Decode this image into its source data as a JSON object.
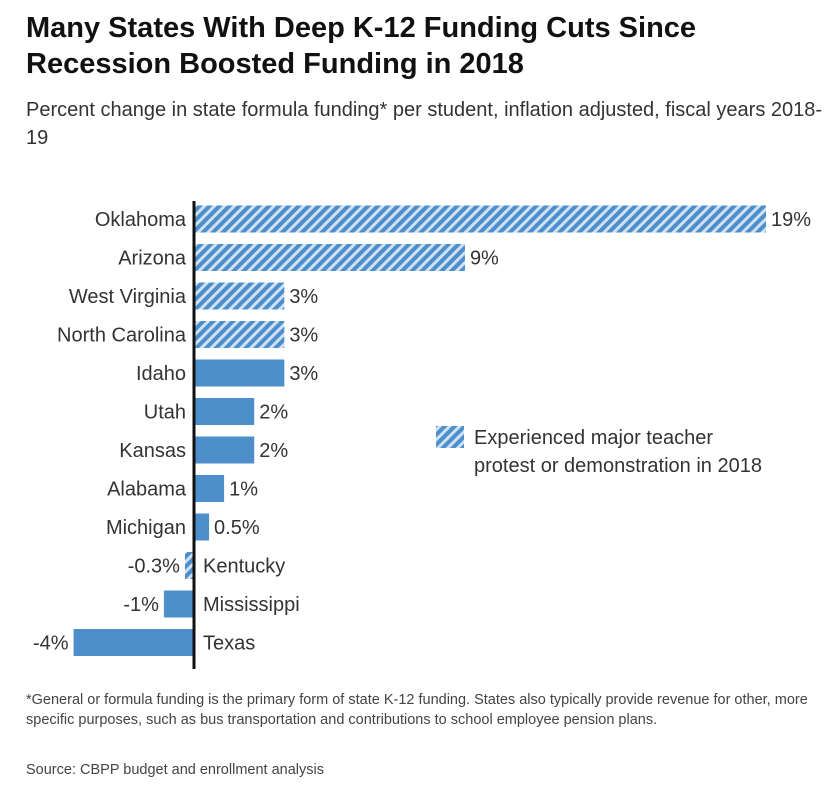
{
  "title": "Many States With Deep K-12 Funding Cuts Since Recession Boosted Funding in 2018",
  "subtitle": "Percent change in state formula funding* per student, inflation adjusted, fiscal years 2018-19",
  "footnote": "*General or formula funding is the primary form of state K-12 funding. States also typically provide revenue for other, more specific purposes, such as bus transportation and contributions to school employee pension plans.",
  "source": "Source: CBPP budget and enrollment analysis",
  "colors": {
    "bar": "#4d8fcb",
    "hatch_light": "#cfe1f2",
    "axis": "#111111"
  },
  "chart_data": {
    "type": "bar",
    "orientation": "horizontal",
    "xlim": [
      -4.5,
      19.5
    ],
    "categories": [
      "Oklahoma",
      "Arizona",
      "West Virginia",
      "North Carolina",
      "Idaho",
      "Utah",
      "Kansas",
      "Alabama",
      "Michigan",
      "Kentucky",
      "Mississippi",
      "Texas"
    ],
    "values": [
      19,
      9,
      3,
      3,
      3,
      2,
      2,
      1,
      0.5,
      -0.3,
      -1,
      -4
    ],
    "value_labels": [
      "19%",
      "9%",
      "3%",
      "3%",
      "3%",
      "2%",
      "2%",
      "1%",
      "0.5%",
      "-0.3%",
      "-1%",
      "-4%"
    ],
    "protest": [
      true,
      true,
      true,
      true,
      false,
      false,
      false,
      false,
      false,
      true,
      false,
      false
    ],
    "legend": {
      "label_line1": "Experienced major teacher",
      "label_line2": "protest or demonstration in 2018",
      "placement": "right"
    }
  }
}
